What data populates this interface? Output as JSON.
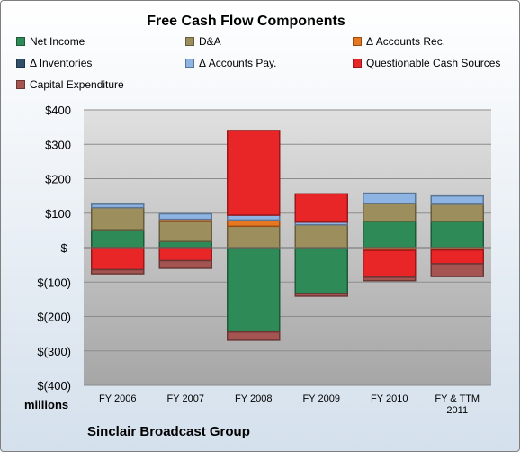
{
  "chart_data": {
    "type": "bar",
    "stacked": true,
    "title": "Free Cash Flow Components",
    "unit_label": "millions",
    "footer": "Sinclair Broadcast Group",
    "categories": [
      [
        "FY 2006"
      ],
      [
        "FY 2007"
      ],
      [
        "FY 2008"
      ],
      [
        "FY 2009"
      ],
      [
        "FY 2010"
      ],
      [
        "FY & TTM",
        "2011"
      ]
    ],
    "y_tick_labels": [
      "$400",
      "$300",
      "$200",
      "$100",
      "$-",
      "$(100)",
      "$(200)",
      "$(300)",
      "$(400)"
    ],
    "ylim": [
      -400,
      400
    ],
    "grid": true,
    "series": [
      {
        "name": "Net Income",
        "color": "#2e8b57",
        "values": [
          52,
          18,
          -245,
          -133,
          76,
          76
        ]
      },
      {
        "name": "D&A",
        "color": "#9d8f5d",
        "values": [
          64,
          58,
          62,
          66,
          52,
          50
        ]
      },
      {
        "name": "Δ Accounts Rec.",
        "color": "#e87722",
        "values": [
          0,
          6,
          18,
          0,
          -8,
          -7
        ]
      },
      {
        "name": "Δ Inventories",
        "color": "#2f4f6b",
        "values": [
          0,
          0,
          0,
          0,
          0,
          0
        ]
      },
      {
        "name": "Δ Accounts Pay.",
        "color": "#8eb4e3",
        "values": [
          10,
          16,
          14,
          8,
          30,
          24
        ]
      },
      {
        "name": "Questionable Cash Sources",
        "color": "#e82628",
        "values": [
          -64,
          -38,
          246,
          82,
          -78,
          -40
        ]
      },
      {
        "name": "Capital Expenditure",
        "color": "#a45552",
        "values": [
          -12,
          -22,
          -24,
          -8,
          -10,
          -37
        ]
      }
    ]
  }
}
